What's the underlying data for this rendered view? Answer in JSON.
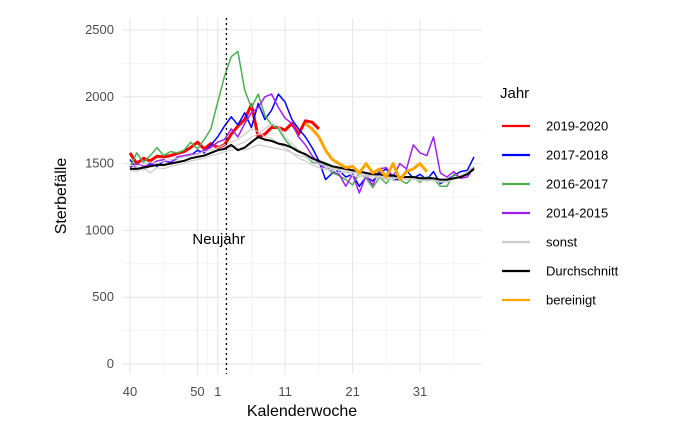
{
  "chart_data": {
    "type": "line",
    "xlabel": "Kalenderwoche",
    "ylabel": "Sterbefälle",
    "ylim": [
      0,
      2500
    ],
    "yticks": [
      "0",
      "500",
      "1000",
      "1500",
      "2000",
      "2500"
    ],
    "xticks": [
      "40",
      "50",
      "1",
      "11",
      "21",
      "31"
    ],
    "grid": true,
    "legend_position": "right",
    "legend_title": "Jahr",
    "annotation": {
      "text": "Neujahr",
      "at_week_index": 14,
      "style": "dotted vertical line"
    },
    "x_weeks": [
      40,
      41,
      42,
      43,
      44,
      45,
      46,
      47,
      48,
      49,
      50,
      51,
      52,
      1,
      2,
      3,
      4,
      5,
      6,
      7,
      8,
      9,
      10,
      11,
      12,
      13,
      14,
      15,
      16,
      17,
      18,
      19,
      20,
      21,
      22,
      23,
      24,
      25,
      26,
      27,
      28,
      29,
      30,
      31,
      32,
      33,
      34,
      35,
      36,
      37,
      38,
      39
    ],
    "series": [
      {
        "name": "2019-2020",
        "color": "#ff0000",
        "width": 3,
        "values": [
          1580,
          1500,
          1540,
          1520,
          1555,
          1550,
          1560,
          1575,
          1590,
          1620,
          1660,
          1610,
          1650,
          1620,
          1640,
          1720,
          1780,
          1830,
          1940,
          1700,
          1720,
          1770,
          1770,
          1750,
          1800,
          1720,
          1820,
          1810,
          1760,
          null,
          null,
          null,
          null,
          null,
          null,
          null,
          null,
          null,
          null,
          null,
          null,
          null,
          null,
          null,
          null,
          null,
          null,
          null,
          null,
          null,
          null,
          null
        ]
      },
      {
        "name": "2017-2018",
        "color": "#0000ff",
        "width": 1.5,
        "values": [
          1530,
          1460,
          1470,
          1500,
          1480,
          1520,
          1510,
          1540,
          1560,
          1560,
          1600,
          1580,
          1640,
          1700,
          1780,
          1850,
          1790,
          1880,
          1770,
          1950,
          1830,
          1900,
          2020,
          1960,
          1830,
          1760,
          1700,
          1620,
          1520,
          1380,
          1430,
          1450,
          1400,
          1420,
          1330,
          1400,
          1370,
          1430,
          1460,
          1380,
          1380,
          1450,
          1390,
          1420,
          1380,
          1440,
          1350,
          1380,
          1410,
          1440,
          1450,
          1550
        ]
      },
      {
        "name": "2016-2017",
        "color": "#4caf50",
        "width": 1.5,
        "values": [
          1470,
          1580,
          1510,
          1560,
          1620,
          1560,
          1590,
          1580,
          1600,
          1660,
          1610,
          1680,
          1760,
          1960,
          2150,
          2300,
          2340,
          2050,
          1920,
          2020,
          1860,
          1790,
          1760,
          1680,
          1620,
          1600,
          1560,
          1510,
          1500,
          1490,
          1430,
          1410,
          1380,
          1340,
          1430,
          1390,
          1320,
          1400,
          1350,
          1420,
          1380,
          1350,
          1400,
          1360,
          1400,
          1390,
          1330,
          1330,
          1420,
          1400,
          1430,
          1470
        ]
      },
      {
        "name": "2014-2015",
        "color": "#a020f0",
        "width": 1.5,
        "values": [
          1470,
          1500,
          1480,
          1490,
          1520,
          1530,
          1500,
          1550,
          1560,
          1570,
          1570,
          1600,
          1620,
          1660,
          1680,
          1760,
          1700,
          1800,
          1880,
          1920,
          2000,
          2020,
          1920,
          1840,
          1800,
          1700,
          1640,
          1560,
          1500,
          1460,
          1450,
          1420,
          1330,
          1420,
          1280,
          1410,
          1340,
          1460,
          1470,
          1400,
          1500,
          1460,
          1640,
          1580,
          1560,
          1700,
          1430,
          1400,
          1440,
          1390,
          1400,
          1470
        ]
      },
      {
        "name": "sonst",
        "color": "#cccccc",
        "width": 1.2,
        "values": [
          1450,
          1440,
          1470,
          1430,
          1470,
          1460,
          1480,
          1490,
          1500,
          1520,
          1530,
          1540,
          1560,
          1570,
          1590,
          1600,
          1610,
          1600,
          1620,
          1640,
          1630,
          1620,
          1610,
          1600,
          1580,
          1560,
          1550,
          1520,
          1500,
          1480,
          1470,
          1460,
          1450,
          1430,
          1420,
          1410,
          1420,
          1400,
          1390,
          1400,
          1390,
          1380,
          1390,
          1380,
          1370,
          1380,
          1360,
          1370,
          1380,
          1400,
          1420,
          1450
        ]
      },
      {
        "name": "sonst",
        "color": "#cccccc",
        "width": 1.2,
        "values": [
          1490,
          1480,
          1500,
          1510,
          1500,
          1520,
          1530,
          1540,
          1550,
          1560,
          1570,
          1590,
          1600,
          1620,
          1640,
          1660,
          1680,
          1720,
          1760,
          1740,
          1700,
          1690,
          1650,
          1620,
          1580,
          1540,
          1520,
          1490,
          1470,
          1460,
          1450,
          1430,
          1440,
          1410,
          1400,
          1420,
          1390,
          1410,
          1400,
          1380,
          1400,
          1390,
          1380,
          1400,
          1390,
          1370,
          1380,
          1360,
          1380,
          1400,
          1430,
          1460
        ]
      },
      {
        "name": "sonst",
        "color": "#cccccc",
        "width": 1.2,
        "values": [
          1460,
          1470,
          1450,
          1480,
          1490,
          1480,
          1500,
          1520,
          1520,
          1540,
          1550,
          1560,
          1580,
          1600,
          1610,
          1620,
          1640,
          1660,
          1700,
          1720,
          1760,
          1800,
          1780,
          1700,
          1650,
          1600,
          1560,
          1520,
          1500,
          1480,
          1460,
          1450,
          1430,
          1440,
          1420,
          1400,
          1410,
          1400,
          1380,
          1390,
          1400,
          1380,
          1390,
          1370,
          1380,
          1390,
          1370,
          1380,
          1390,
          1410,
          1440,
          1480
        ]
      },
      {
        "name": "Durchschnitt",
        "color": "#000000",
        "width": 2,
        "values": [
          1460,
          1460,
          1470,
          1480,
          1490,
          1490,
          1500,
          1510,
          1520,
          1540,
          1550,
          1560,
          1580,
          1600,
          1610,
          1640,
          1600,
          1620,
          1660,
          1700,
          1680,
          1670,
          1650,
          1640,
          1620,
          1590,
          1570,
          1540,
          1520,
          1500,
          1480,
          1470,
          1460,
          1450,
          1440,
          1430,
          1420,
          1420,
          1410,
          1410,
          1400,
          1400,
          1400,
          1390,
          1390,
          1390,
          1380,
          1380,
          1390,
          1400,
          1420,
          1460
        ]
      },
      {
        "name": "bereinigt",
        "color": "#ffa500",
        "width": 3,
        "values": [
          null,
          null,
          null,
          null,
          null,
          null,
          null,
          null,
          null,
          null,
          null,
          null,
          null,
          null,
          null,
          null,
          null,
          null,
          null,
          null,
          null,
          null,
          null,
          null,
          null,
          null,
          1800,
          1760,
          1700,
          1600,
          1530,
          1500,
          1470,
          1480,
          1430,
          1500,
          1430,
          1460,
          1400,
          1500,
          1380,
          1440,
          1460,
          1500,
          1440,
          null,
          null,
          null,
          null,
          null,
          null,
          null
        ]
      }
    ]
  },
  "legend": {
    "title": "Jahr",
    "items": [
      {
        "label": "2019-2020",
        "color": "#ff0000"
      },
      {
        "label": "2017-2018",
        "color": "#0000ff"
      },
      {
        "label": "2016-2017",
        "color": "#4caf50"
      },
      {
        "label": "2014-2015",
        "color": "#a020f0"
      },
      {
        "label": "sonst",
        "color": "#cccccc"
      },
      {
        "label": "Durchschnitt",
        "color": "#000000"
      },
      {
        "label": "bereinigt",
        "color": "#ffa500"
      }
    ]
  }
}
